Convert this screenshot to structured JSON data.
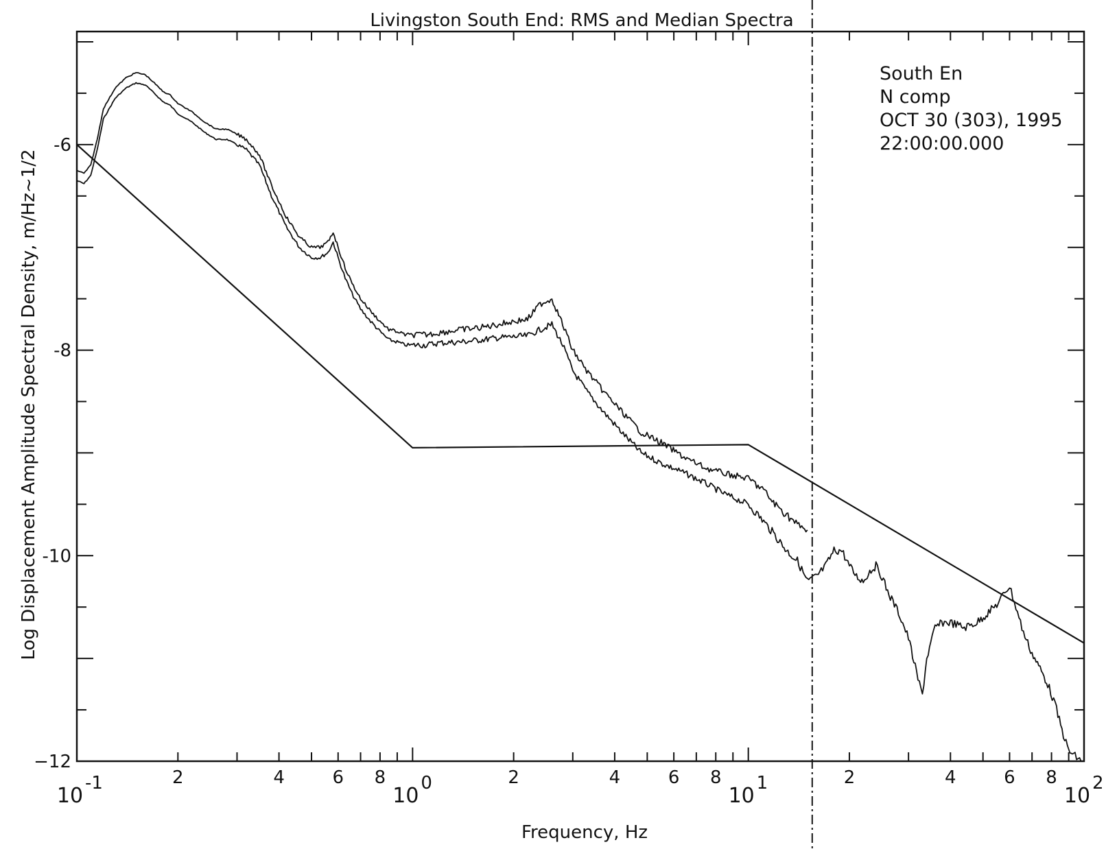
{
  "chart_data": {
    "type": "line",
    "title": "Livingston South End: RMS and Median Spectra",
    "xlabel": "Frequency, Hz",
    "ylabel": "Log Displacement Amplitude Spectral Density, m/Hz~1/2",
    "x_scale": "log",
    "xlim": [
      0.1,
      100
    ],
    "ylim": [
      -12,
      -4.9
    ],
    "x_ticks": [
      {
        "base": "10",
        "exp": "-1"
      },
      {
        "base": "10",
        "exp": "0"
      },
      {
        "base": "10",
        "exp": "1"
      },
      {
        "base": "10",
        "exp": "2"
      }
    ],
    "x_minor_labels": [
      {
        "value": 0.2,
        "label": "2"
      },
      {
        "value": 0.4,
        "label": "4"
      },
      {
        "value": 0.6,
        "label": "6"
      },
      {
        "value": 0.8,
        "label": "8"
      },
      {
        "value": 2,
        "label": "2"
      },
      {
        "value": 4,
        "label": "4"
      },
      {
        "value": 6,
        "label": "6"
      },
      {
        "value": 8,
        "label": "8"
      },
      {
        "value": 20,
        "label": "2"
      },
      {
        "value": 40,
        "label": "4"
      },
      {
        "value": 60,
        "label": "6"
      },
      {
        "value": 80,
        "label": "8"
      }
    ],
    "y_ticks": [
      {
        "value": -6,
        "label": "-6"
      },
      {
        "value": -8,
        "label": "-8"
      },
      {
        "value": -10,
        "label": "-10"
      },
      {
        "value": -12,
        "label": "−12"
      }
    ],
    "grid": false,
    "annotation_lines": [
      "South En",
      "N comp",
      "OCT 30 (303), 1995",
      "22:00:00.000"
    ],
    "vertical_marker_x": 15.5,
    "series": [
      {
        "x": [
          0.1,
          0.105,
          0.11,
          0.115,
          0.12,
          0.13,
          0.14,
          0.15,
          0.16,
          0.17,
          0.18,
          0.19,
          0.2,
          0.22,
          0.24,
          0.26,
          0.28,
          0.3,
          0.32,
          0.35,
          0.38,
          0.42,
          0.46,
          0.5,
          0.53,
          0.56,
          0.58,
          0.6,
          0.63,
          0.66,
          0.7,
          0.75,
          0.8,
          0.85,
          0.9,
          0.95,
          1.0,
          1.1,
          1.2,
          1.4,
          1.6,
          1.8,
          2.0,
          2.2,
          2.4,
          2.6,
          2.8,
          3.0,
          3.3,
          3.7,
          4.2,
          4.8,
          5.5,
          6.5,
          7.5,
          8.5,
          10,
          11,
          12,
          13,
          14,
          15,
          16,
          17,
          18,
          19,
          20,
          21,
          22,
          23,
          24,
          25,
          26,
          28,
          30,
          32,
          33,
          34,
          36,
          38,
          40,
          44,
          48,
          52,
          56,
          58,
          60,
          62,
          64,
          66,
          70,
          74,
          78,
          82,
          86,
          90,
          94,
          98
        ],
        "values": [
          -6.35,
          -6.38,
          -6.3,
          -6.05,
          -5.75,
          -5.55,
          -5.45,
          -5.4,
          -5.42,
          -5.5,
          -5.58,
          -5.62,
          -5.7,
          -5.78,
          -5.88,
          -5.95,
          -5.95,
          -6.0,
          -6.05,
          -6.2,
          -6.5,
          -6.8,
          -7.0,
          -7.1,
          -7.1,
          -7.05,
          -6.95,
          -7.1,
          -7.3,
          -7.45,
          -7.6,
          -7.72,
          -7.82,
          -7.9,
          -7.92,
          -7.95,
          -7.95,
          -7.95,
          -7.93,
          -7.92,
          -7.9,
          -7.88,
          -7.87,
          -7.86,
          -7.8,
          -7.75,
          -7.95,
          -8.2,
          -8.4,
          -8.6,
          -8.8,
          -9.0,
          -9.1,
          -9.2,
          -9.3,
          -9.4,
          -9.5,
          -9.65,
          -9.8,
          -9.95,
          -10.05,
          -10.25,
          -10.2,
          -10.1,
          -9.95,
          -9.95,
          -10.1,
          -10.2,
          -10.25,
          -10.15,
          -10.1,
          -10.2,
          -10.35,
          -10.55,
          -10.8,
          -11.2,
          -11.35,
          -11.0,
          -10.7,
          -10.65,
          -10.65,
          -10.7,
          -10.65,
          -10.55,
          -10.45,
          -10.35,
          -10.3,
          -10.45,
          -10.6,
          -10.75,
          -10.95,
          -11.1,
          -11.25,
          -11.45,
          -11.7,
          -11.9,
          -11.95,
          -12.0
        ]
      },
      {
        "x": [
          0.1,
          0.105,
          0.11,
          0.115,
          0.12,
          0.13,
          0.14,
          0.15,
          0.16,
          0.17,
          0.18,
          0.19,
          0.2,
          0.22,
          0.24,
          0.26,
          0.28,
          0.3,
          0.32,
          0.35,
          0.38,
          0.42,
          0.46,
          0.5,
          0.53,
          0.56,
          0.58,
          0.6,
          0.63,
          0.66,
          0.7,
          0.75,
          0.8,
          0.85,
          0.9,
          0.95,
          1.0,
          1.1,
          1.2,
          1.4,
          1.6,
          1.8,
          2.0,
          2.2,
          2.4,
          2.6,
          2.8,
          3.0,
          3.3,
          3.7,
          4.2,
          4.8,
          5.5,
          6.5,
          7.5,
          8.5,
          10,
          11,
          12,
          13,
          14,
          15
        ],
        "values": [
          -6.25,
          -6.28,
          -6.2,
          -5.95,
          -5.65,
          -5.45,
          -5.35,
          -5.3,
          -5.32,
          -5.4,
          -5.48,
          -5.52,
          -5.6,
          -5.68,
          -5.78,
          -5.85,
          -5.85,
          -5.9,
          -5.95,
          -6.1,
          -6.4,
          -6.7,
          -6.9,
          -7.0,
          -7.0,
          -6.95,
          -6.85,
          -7.0,
          -7.2,
          -7.35,
          -7.5,
          -7.62,
          -7.72,
          -7.8,
          -7.82,
          -7.85,
          -7.85,
          -7.85,
          -7.83,
          -7.8,
          -7.78,
          -7.75,
          -7.72,
          -7.7,
          -7.55,
          -7.5,
          -7.75,
          -8.0,
          -8.2,
          -8.4,
          -8.6,
          -8.8,
          -8.9,
          -9.05,
          -9.15,
          -9.2,
          -9.25,
          -9.35,
          -9.5,
          -9.6,
          -9.7,
          -9.75
        ]
      },
      {
        "x": [
          0.1,
          1.0,
          10,
          100
        ],
        "values": [
          -6.0,
          -8.95,
          -8.92,
          -10.85
        ]
      }
    ]
  }
}
